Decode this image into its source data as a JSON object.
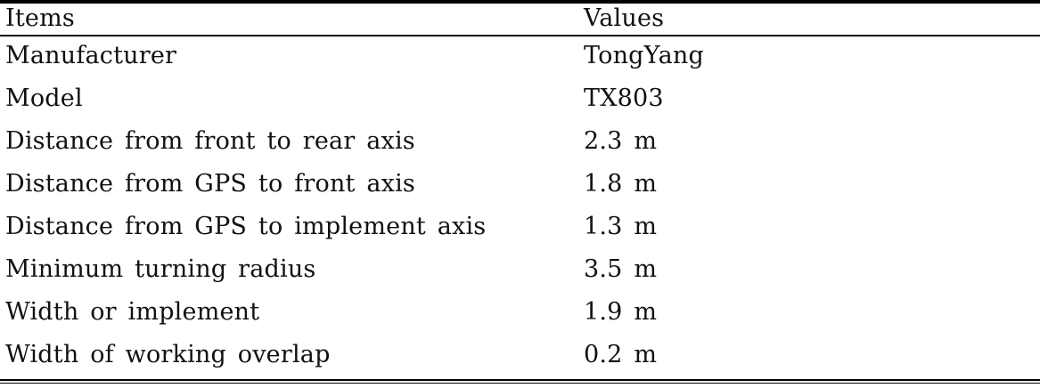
{
  "table": {
    "header": {
      "items": "Items",
      "values": "Values"
    },
    "rows": [
      {
        "item": "Manufacturer",
        "value": "TongYang"
      },
      {
        "item": "Model",
        "value": "TX803"
      },
      {
        "item": "Distance from front to rear axis",
        "value": "2.3 m"
      },
      {
        "item": "Distance from GPS to front axis",
        "value": "1.8 m"
      },
      {
        "item": "Distance from GPS to implement axis",
        "value": "1.3 m"
      },
      {
        "item": "Minimum turning radius",
        "value": "3.5 m"
      },
      {
        "item": "Width or implement",
        "value": "1.9 m"
      },
      {
        "item": "Width of working overlap",
        "value": "0.2 m"
      }
    ]
  }
}
